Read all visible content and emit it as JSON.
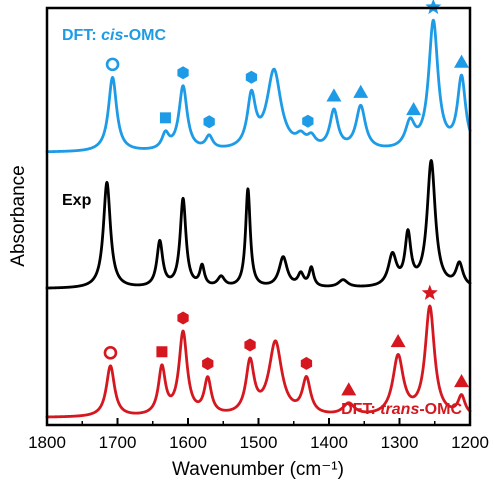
{
  "chart_data": {
    "type": "line",
    "xlabel": "Wavenumber (cm⁻¹)",
    "ylabel": "Absorbance",
    "xlim": [
      1800,
      1200
    ],
    "xticks": [
      1800,
      1700,
      1600,
      1500,
      1400,
      1300,
      1200
    ],
    "grid": false,
    "series": [
      {
        "key": "cis",
        "label_prefix": "DFT: ",
        "label_italic": "cis",
        "label_suffix": "-OMC",
        "color": "#1e9be6",
        "baseline": 0.02,
        "peaks": [
          {
            "x": 1707,
            "h": 0.58,
            "w": 7
          },
          {
            "x": 1632,
            "h": 0.12,
            "w": 6
          },
          {
            "x": 1607,
            "h": 0.5,
            "w": 7
          },
          {
            "x": 1570,
            "h": 0.1,
            "w": 6
          },
          {
            "x": 1510,
            "h": 0.4,
            "w": 7
          },
          {
            "x": 1478,
            "h": 0.62,
            "w": 12
          },
          {
            "x": 1440,
            "h": 0.08,
            "w": 8
          },
          {
            "x": 1425,
            "h": 0.08,
            "w": 7
          },
          {
            "x": 1393,
            "h": 0.3,
            "w": 7
          },
          {
            "x": 1355,
            "h": 0.34,
            "w": 8
          },
          {
            "x": 1285,
            "h": 0.2,
            "w": 8
          },
          {
            "x": 1252,
            "h": 1.0,
            "w": 8
          },
          {
            "x": 1212,
            "h": 0.56,
            "w": 7
          }
        ],
        "markers": [
          {
            "x": 1707,
            "shape": "circle-open"
          },
          {
            "x": 1632,
            "shape": "square"
          },
          {
            "x": 1607,
            "shape": "hexagon"
          },
          {
            "x": 1570,
            "shape": "hexagon"
          },
          {
            "x": 1510,
            "shape": "hexagon"
          },
          {
            "x": 1430,
            "shape": "hexagon"
          },
          {
            "x": 1393,
            "shape": "triangle"
          },
          {
            "x": 1355,
            "shape": "triangle"
          },
          {
            "x": 1280,
            "shape": "triangle"
          },
          {
            "x": 1252,
            "shape": "star"
          },
          {
            "x": 1212,
            "shape": "triangle"
          }
        ]
      },
      {
        "key": "exp",
        "label_prefix": "Exp",
        "label_italic": "",
        "label_suffix": "",
        "color": "#000000",
        "baseline": 0.01,
        "peaks": [
          {
            "x": 1715,
            "h": 0.84,
            "w": 6
          },
          {
            "x": 1640,
            "h": 0.36,
            "w": 5
          },
          {
            "x": 1607,
            "h": 0.7,
            "w": 5
          },
          {
            "x": 1580,
            "h": 0.16,
            "w": 4
          },
          {
            "x": 1553,
            "h": 0.08,
            "w": 6
          },
          {
            "x": 1515,
            "h": 0.78,
            "w": 4
          },
          {
            "x": 1465,
            "h": 0.24,
            "w": 7
          },
          {
            "x": 1440,
            "h": 0.1,
            "w": 5
          },
          {
            "x": 1425,
            "h": 0.15,
            "w": 4
          },
          {
            "x": 1380,
            "h": 0.06,
            "w": 8
          },
          {
            "x": 1310,
            "h": 0.25,
            "w": 7
          },
          {
            "x": 1288,
            "h": 0.4,
            "w": 5
          },
          {
            "x": 1255,
            "h": 1.0,
            "w": 7
          },
          {
            "x": 1215,
            "h": 0.18,
            "w": 6
          }
        ],
        "markers": []
      },
      {
        "key": "trans",
        "label_prefix": "DFT: ",
        "label_italic": "trans",
        "label_suffix": "-OMC",
        "color": "#d51820",
        "baseline": 0.02,
        "peaks": [
          {
            "x": 1710,
            "h": 0.43,
            "w": 7
          },
          {
            "x": 1637,
            "h": 0.4,
            "w": 6
          },
          {
            "x": 1607,
            "h": 0.7,
            "w": 7
          },
          {
            "x": 1572,
            "h": 0.3,
            "w": 6
          },
          {
            "x": 1512,
            "h": 0.44,
            "w": 7
          },
          {
            "x": 1476,
            "h": 0.62,
            "w": 11
          },
          {
            "x": 1432,
            "h": 0.3,
            "w": 7
          },
          {
            "x": 1372,
            "h": 0.1,
            "w": 10
          },
          {
            "x": 1302,
            "h": 0.5,
            "w": 9
          },
          {
            "x": 1257,
            "h": 0.92,
            "w": 8
          },
          {
            "x": 1212,
            "h": 0.16,
            "w": 6
          }
        ],
        "markers": [
          {
            "x": 1710,
            "shape": "circle-open"
          },
          {
            "x": 1637,
            "shape": "square"
          },
          {
            "x": 1607,
            "shape": "hexagon"
          },
          {
            "x": 1572,
            "shape": "hexagon"
          },
          {
            "x": 1512,
            "shape": "hexagon"
          },
          {
            "x": 1432,
            "shape": "hexagon"
          },
          {
            "x": 1372,
            "shape": "triangle"
          },
          {
            "x": 1302,
            "shape": "triangle"
          },
          {
            "x": 1257,
            "shape": "star"
          },
          {
            "x": 1212,
            "shape": "triangle"
          }
        ]
      }
    ]
  }
}
